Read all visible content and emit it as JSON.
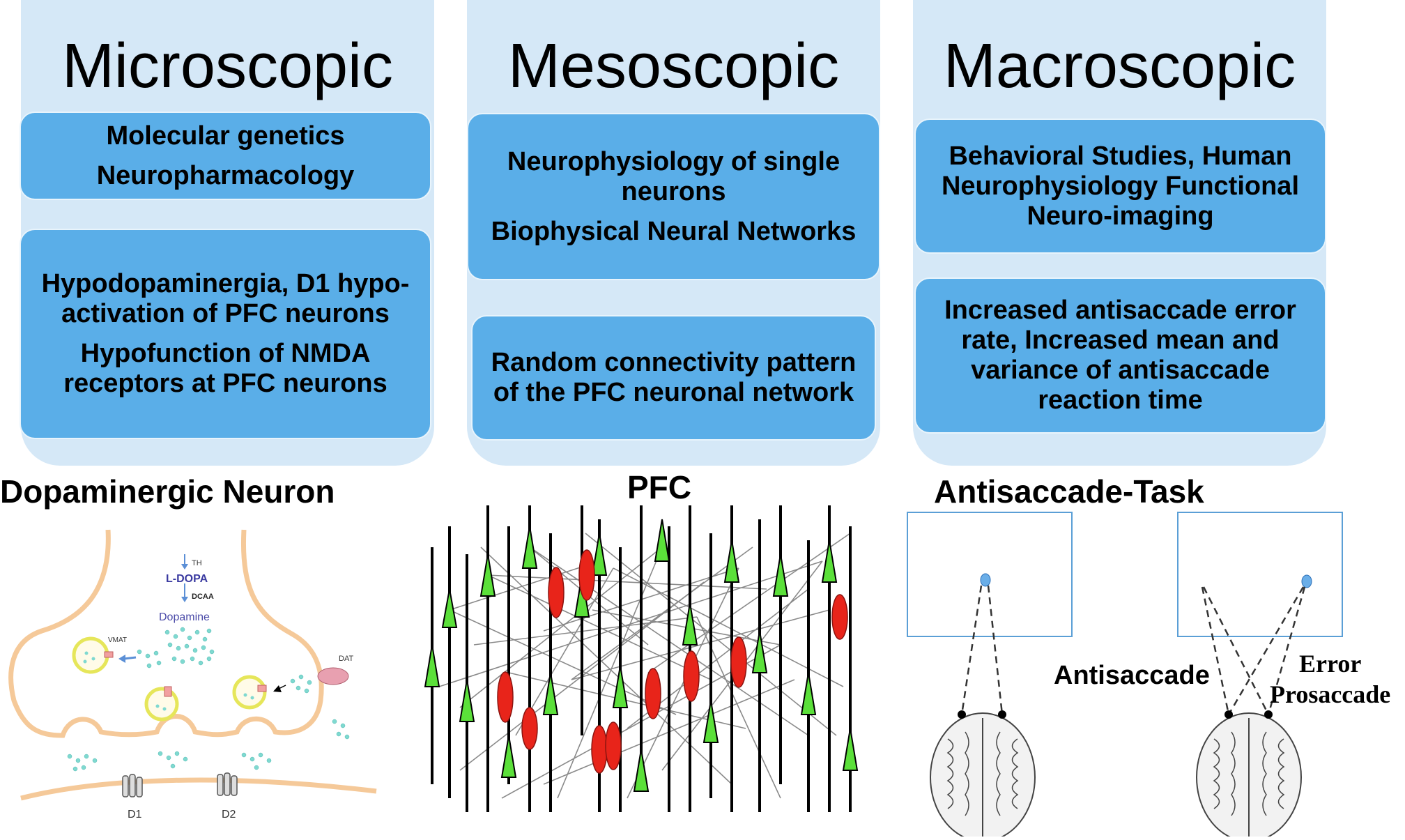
{
  "columns": [
    {
      "title": "Microscopic",
      "box1": [
        "Molecular genetics",
        "Neuropharmacology"
      ],
      "box2": [
        "Hypodopaminergia, D1 hypo-activation of  PFC neurons",
        "Hypofunction of NMDA receptors at PFC neurons"
      ]
    },
    {
      "title": "Mesoscopic",
      "box1": [
        "Neurophysiology of single neurons",
        "Biophysical Neural Networks"
      ],
      "box2": [
        "Random connectivity pattern of the PFC neuronal network"
      ]
    },
    {
      "title": "Macroscopic",
      "box1": [
        "Behavioral Studies, Human Neurophysiology Functional Neuro-imaging"
      ],
      "box2": [
        "Increased antisaccade error rate, Increased mean and variance of antisaccade reaction time"
      ]
    }
  ],
  "sections": {
    "micro": "Dopaminergic Neuron",
    "meso": "PFC",
    "macro": "Antisaccade-Task"
  },
  "neuron": {
    "th": "TH",
    "ldopa": "L-DOPA",
    "dcaa": "DCAA",
    "dopamine": "Dopamine",
    "vmat": "VMAT",
    "dat": "DAT",
    "d1": "D1",
    "d2": "D2"
  },
  "antisaccade": {
    "antisaccade_label": "Antisaccade",
    "error_label": "Error",
    "prosaccade_label": "Prosaccade"
  }
}
